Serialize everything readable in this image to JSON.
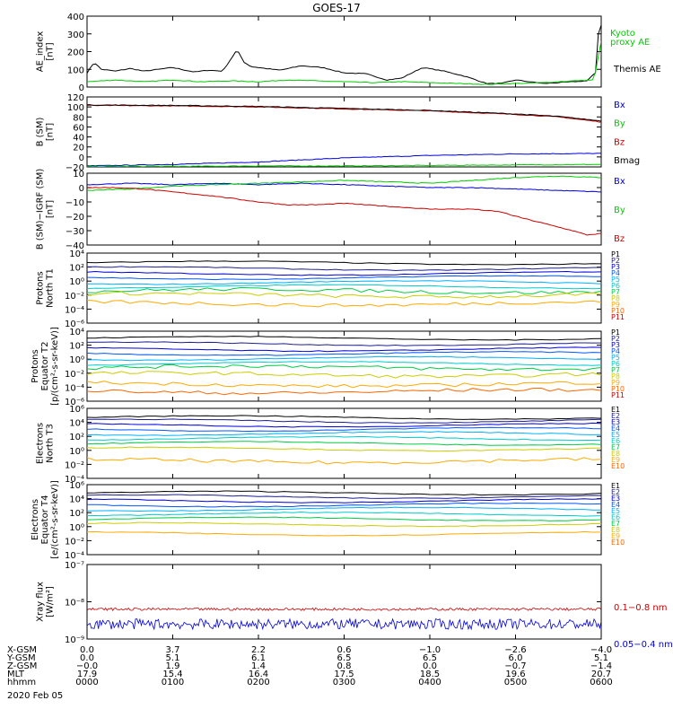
{
  "title": "GOES-17",
  "colors": {
    "black": "#000000",
    "green": "#00cc00",
    "blue": "#0000dd",
    "red": "#cc0000",
    "P": [
      "#000000",
      "#1f1f8f",
      "#0000dd",
      "#0055ff",
      "#00b0ff",
      "#00cccc",
      "#00cc44",
      "#cccc00",
      "#ffaa00",
      "#ff6600",
      "#cc0000"
    ],
    "E": [
      "#000000",
      "#1f1f8f",
      "#0000dd",
      "#0055ff",
      "#00b0ff",
      "#00cccc",
      "#00cc44",
      "#cccc00",
      "#ffaa00",
      "#ff6600",
      "#cc0000"
    ]
  },
  "chart_data": [
    {
      "type": "line",
      "ylabel": [
        "AE_index",
        "[nT]"
      ],
      "ylim": [
        0,
        400
      ],
      "yticks": [
        "0",
        "100",
        "200",
        "300",
        "400"
      ],
      "x": [
        0,
        30,
        60,
        90,
        120,
        150,
        180,
        210,
        240,
        270,
        300,
        330,
        360
      ],
      "legend": [
        "Kyoto",
        "proxy AE",
        "Themis AE"
      ],
      "series": [
        {
          "name": "Themis AE",
          "color": "black",
          "x": [
            0,
            5,
            10,
            15,
            20,
            30,
            40,
            60,
            75,
            85,
            95,
            105,
            110,
            115,
            120,
            135,
            150,
            165,
            180,
            195,
            210,
            220,
            235,
            250,
            265,
            280,
            290,
            300,
            310,
            320,
            330,
            340,
            350,
            356,
            358,
            360
          ],
          "values": [
            80,
            140,
            100,
            95,
            90,
            105,
            90,
            110,
            85,
            95,
            90,
            210,
            140,
            115,
            110,
            95,
            120,
            110,
            80,
            75,
            40,
            50,
            110,
            90,
            60,
            20,
            20,
            40,
            30,
            20,
            25,
            30,
            35,
            80,
            300,
            350
          ]
        },
        {
          "name": "Kyoto proxy AE",
          "color": "green",
          "x": [
            0,
            20,
            40,
            60,
            80,
            100,
            120,
            140,
            160,
            180,
            200,
            220,
            240,
            260,
            280,
            300,
            320,
            340,
            355,
            360
          ],
          "values": [
            30,
            40,
            30,
            40,
            30,
            35,
            30,
            40,
            35,
            30,
            25,
            30,
            25,
            20,
            15,
            20,
            25,
            35,
            40,
            260
          ]
        }
      ]
    },
    {
      "type": "line",
      "ylabel": [
        "B (SM)",
        "[nT]"
      ],
      "ylim": [
        -20,
        120
      ],
      "yticks": [
        "−20",
        "0",
        "20",
        "40",
        "60",
        "80",
        "100",
        "120"
      ],
      "legend": [
        "Bx",
        "By",
        "Bz",
        "Bmag"
      ],
      "series": [
        {
          "name": "Bx",
          "color": "blue",
          "x": [
            0,
            60,
            120,
            180,
            240,
            300,
            360
          ],
          "values": [
            -18,
            -15,
            -10,
            -2,
            3,
            6,
            7
          ]
        },
        {
          "name": "By",
          "color": "green",
          "x": [
            0,
            60,
            120,
            180,
            240,
            300,
            360
          ],
          "values": [
            -19,
            -19,
            -18,
            -18,
            -17,
            -16,
            -15
          ]
        },
        {
          "name": "Bz",
          "color": "red",
          "x": [
            0,
            60,
            120,
            180,
            240,
            300,
            330,
            360
          ],
          "values": [
            103,
            102,
            100,
            96,
            92,
            85,
            80,
            70
          ]
        },
        {
          "name": "Bmag",
          "color": "black",
          "x": [
            0,
            60,
            120,
            180,
            240,
            300,
            330,
            360
          ],
          "values": [
            104,
            103,
            101,
            97,
            93,
            86,
            81,
            72
          ]
        }
      ]
    },
    {
      "type": "line",
      "ylabel": [
        "B (SM)−IGRF (SM)",
        "[nT]"
      ],
      "ylim": [
        -40,
        10
      ],
      "yticks": [
        "−40",
        "−30",
        "−20",
        "−10",
        "0",
        "10"
      ],
      "legend": [
        "Bx",
        "By",
        "Bz"
      ],
      "series": [
        {
          "name": "Bx",
          "color": "blue",
          "x": [
            0,
            30,
            60,
            90,
            120,
            150,
            180,
            210,
            240,
            270,
            300,
            330,
            360
          ],
          "values": [
            2,
            3,
            2,
            3,
            2,
            3,
            2,
            1,
            0,
            0,
            -1,
            -2,
            -3
          ]
        },
        {
          "name": "By",
          "color": "green",
          "x": [
            0,
            30,
            60,
            90,
            120,
            150,
            180,
            210,
            240,
            270,
            300,
            330,
            360
          ],
          "values": [
            -2,
            -1,
            1,
            2,
            3,
            4,
            5,
            4,
            3,
            5,
            7,
            8,
            7
          ]
        },
        {
          "name": "Bz",
          "color": "red",
          "x": [
            0,
            20,
            40,
            60,
            90,
            120,
            140,
            160,
            180,
            210,
            240,
            270,
            290,
            300,
            320,
            340,
            350,
            360
          ],
          "values": [
            0,
            0,
            -1,
            -3,
            -6,
            -10,
            -12,
            -12,
            -11,
            -13,
            -15,
            -15,
            -17,
            -20,
            -25,
            -30,
            -33,
            -32
          ]
        }
      ]
    },
    {
      "type": "line",
      "ylabel": [
        "Protons",
        "North T1"
      ],
      "ylog": true,
      "ylim": [
        -6,
        4
      ],
      "yticks": [
        "10⁻⁶",
        "10⁻⁴",
        "10⁻²",
        "10⁰",
        "10²",
        "10⁴"
      ],
      "legend": [
        "P1",
        "P2",
        "P3",
        "P4",
        "P5",
        "P6",
        "P7",
        "P8",
        "P9",
        "P10",
        "P11"
      ],
      "series_log10": [
        2.6,
        1.8,
        1.1,
        0.5,
        -0.2,
        -0.8,
        -1.4,
        -2.0,
        -3.2,
        -9,
        -9
      ]
    },
    {
      "type": "line",
      "ylabel": [
        "Protons",
        "Equator T2",
        "[p/(cm²-s-sr-keV)]"
      ],
      "ylog": true,
      "ylim": [
        -6,
        4
      ],
      "yticks": [
        "10⁻⁶",
        "10⁻⁴",
        "10⁻²",
        "10⁰",
        "10²",
        "10⁴"
      ],
      "legend": [
        "P1",
        "P2",
        "P3",
        "P4",
        "P5",
        "P6",
        "P7",
        "P8",
        "P9",
        "P10",
        "P11"
      ],
      "series_log10": [
        3.0,
        2.2,
        1.4,
        0.8,
        0.1,
        -0.6,
        -1.2,
        -2.2,
        -3.6,
        -4.6,
        -9
      ]
    },
    {
      "type": "line",
      "ylabel": [
        "Electrons",
        "North T3"
      ],
      "ylog": true,
      "ylim": [
        -4,
        6
      ],
      "yticks": [
        "10⁻⁴",
        "10⁻²",
        "10⁰",
        "10²",
        "10⁴",
        "10⁶"
      ],
      "legend": [
        "E1",
        "E2",
        "E3",
        "E4",
        "E5",
        "E6",
        "E7",
        "E8",
        "E9",
        "E10"
      ],
      "series_log10": [
        4.7,
        4.2,
        3.6,
        3.0,
        2.4,
        1.7,
        1.0,
        0.2,
        -1.5,
        -9
      ]
    },
    {
      "type": "line",
      "ylabel": [
        "Electrons",
        "Equator T4",
        "[e/(cm²-s-sr-keV)]"
      ],
      "ylog": true,
      "ylim": [
        -4,
        6
      ],
      "yticks": [
        "10⁻⁴",
        "10⁻²",
        "10⁰",
        "10²",
        "10⁴",
        "10⁶"
      ],
      "legend": [
        "E1",
        "E2",
        "E3",
        "E4",
        "E5",
        "E6",
        "E7",
        "E8",
        "E9",
        "E10"
      ],
      "series_log10": [
        4.8,
        4.3,
        3.7,
        3.1,
        2.5,
        1.8,
        1.1,
        0.3,
        -1.0,
        -9
      ]
    },
    {
      "type": "line",
      "ylabel": [
        "Xray flux",
        "[W/m²]"
      ],
      "ylog": true,
      "ylim": [
        -9,
        -7
      ],
      "yticks": [
        "10⁻⁹",
        "10⁻⁸",
        "10⁻⁷"
      ],
      "legend": [
        "0.1−0.8 nm",
        "0.05−0.4 nm"
      ],
      "series": [
        {
          "name": "0.1−0.8 nm",
          "color": "red",
          "base_log10": -8.2
        },
        {
          "name": "0.05−0.4 nm",
          "color": "blue",
          "base_log10": -8.6
        }
      ]
    }
  ],
  "xaxis": {
    "range_minutes": [
      0,
      360
    ],
    "tick_minutes": [
      0,
      60,
      120,
      180,
      240,
      300,
      360
    ],
    "rows": [
      {
        "label": "X-GSM",
        "values": [
          "0.0",
          "3.7",
          "2.2",
          "0.6",
          "−1.0",
          "−2.6",
          "−4.0"
        ]
      },
      {
        "label": "Y-GSM",
        "values": [
          "0.0",
          "5.1",
          "6.1",
          "6.5",
          "6.5",
          "6.0",
          "5.1"
        ]
      },
      {
        "label": "Z-GSM",
        "values": [
          "−0.0",
          "1.9",
          "1.4",
          "0.8",
          "0.0",
          "−0.7",
          "−1.4"
        ]
      },
      {
        "label": "MLT",
        "values": [
          "17.9",
          "15.4",
          "16.4",
          "17.5",
          "18.5",
          "19.6",
          "20.7"
        ]
      },
      {
        "label": "hhmm",
        "values": [
          "0000",
          "0100",
          "0200",
          "0300",
          "0400",
          "0500",
          "0600"
        ]
      }
    ],
    "date": "2020 Feb 05"
  }
}
